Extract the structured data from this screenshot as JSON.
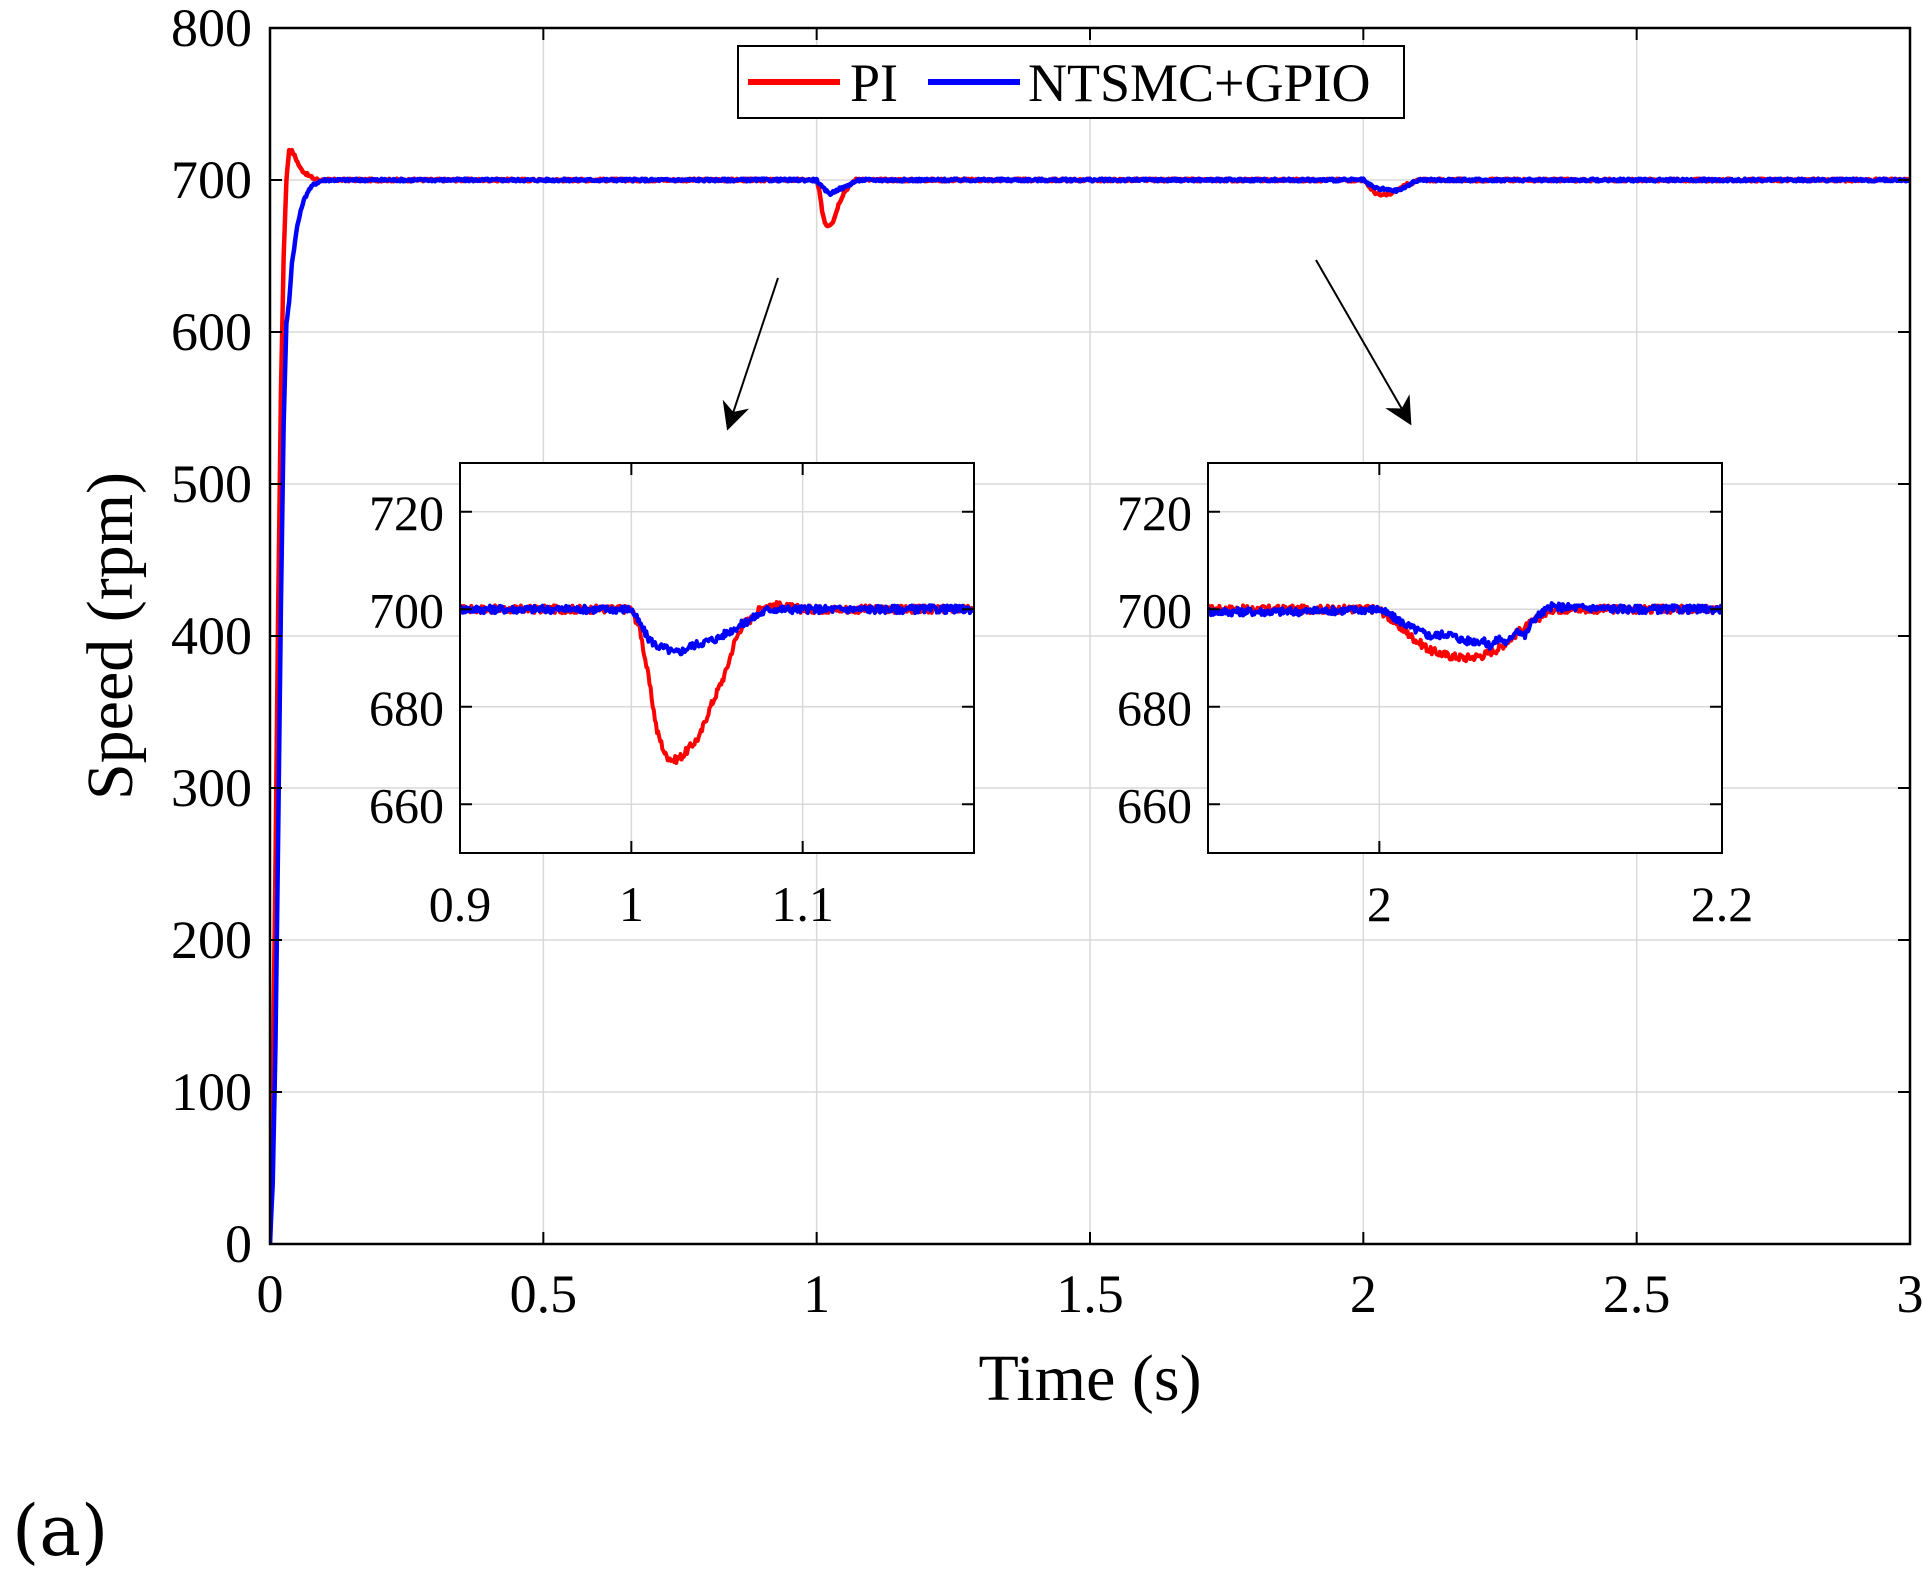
{
  "panel_label": "(a)",
  "colors": {
    "pi": "#ff0000",
    "ntsmc_gpio": "#0000ff",
    "grid": "#d9d9d9",
    "axis": "#000000"
  },
  "chart_data": {
    "type": "line",
    "title": "",
    "xlabel": "Time (s)",
    "ylabel": "Speed (rpm)",
    "xlim": [
      0,
      3
    ],
    "ylim": [
      0,
      800
    ],
    "xticks": [
      0,
      0.5,
      1,
      1.5,
      2,
      2.5,
      3
    ],
    "xtick_labels": [
      "0",
      "0.5",
      "1",
      "1.5",
      "2",
      "2.5",
      "3"
    ],
    "yticks": [
      0,
      100,
      200,
      300,
      400,
      500,
      600,
      700,
      800
    ],
    "ytick_labels": [
      "0",
      "100",
      "200",
      "300",
      "400",
      "500",
      "600",
      "700",
      "800"
    ],
    "grid": true,
    "legend": {
      "placement": "top-center",
      "entries": [
        "PI",
        "NTSMC+GPIO"
      ]
    },
    "series": [
      {
        "name": "PI",
        "color": "#ff0000",
        "x": [
          0,
          0.005,
          0.01,
          0.015,
          0.02,
          0.025,
          0.03,
          0.035,
          0.04,
          0.045,
          0.05,
          0.055,
          0.06,
          0.07,
          0.08,
          0.09,
          0.1,
          0.12,
          0.15,
          0.3,
          0.6,
          0.9,
          1.0,
          1.005,
          1.01,
          1.015,
          1.02,
          1.025,
          1.03,
          1.035,
          1.04,
          1.05,
          1.06,
          1.07,
          1.08,
          1.09,
          1.2,
          1.5,
          1.9,
          2.0,
          2.01,
          2.02,
          2.03,
          2.04,
          2.05,
          2.06,
          2.07,
          2.08,
          2.09,
          2.1,
          2.11,
          2.2,
          2.5,
          3.0
        ],
        "y": [
          0,
          100,
          250,
          420,
          560,
          650,
          700,
          720,
          719,
          716,
          712,
          708,
          706,
          703,
          701,
          700,
          700,
          700,
          700,
          700,
          700,
          700,
          700,
          692,
          680,
          672,
          670,
          671,
          673,
          678,
          684,
          692,
          696,
          700,
          701,
          700,
          700,
          700,
          700,
          700,
          696,
          692,
          690,
          690,
          691,
          693,
          695,
          697,
          698,
          700,
          700,
          700,
          700,
          700
        ]
      },
      {
        "name": "NTSMC+GPIO",
        "color": "#0000ff",
        "x": [
          0,
          0.005,
          0.01,
          0.015,
          0.02,
          0.025,
          0.03,
          0.035,
          0.04,
          0.05,
          0.06,
          0.07,
          0.08,
          0.09,
          0.1,
          0.11,
          0.12,
          0.14,
          0.3,
          0.6,
          0.9,
          1.0,
          1.01,
          1.02,
          1.025,
          1.03,
          1.04,
          1.05,
          1.06,
          1.07,
          1.08,
          1.1,
          1.5,
          1.9,
          2.0,
          2.01,
          2.02,
          2.03,
          2.04,
          2.05,
          2.06,
          2.07,
          2.08,
          2.09,
          2.1,
          2.11,
          2.2,
          2.5,
          3.0
        ],
        "y": [
          0,
          40,
          130,
          270,
          420,
          540,
          605,
          620,
          645,
          670,
          685,
          693,
          697,
          699,
          700,
          700,
          700,
          700,
          700,
          700,
          700,
          700,
          695,
          692,
          691,
          692,
          694,
          695,
          697,
          699,
          700,
          700,
          700,
          700,
          700,
          697,
          695,
          694,
          694,
          693,
          693,
          694,
          696,
          698,
          700,
          700,
          700,
          700,
          700
        ]
      }
    ],
    "insets": [
      {
        "name": "inset-1",
        "xlim": [
          0.9,
          1.2
        ],
        "ylim": [
          650,
          730
        ],
        "xticks": [
          0.9,
          1,
          1.1
        ],
        "xtick_labels": [
          "0.9",
          "1",
          "1.1"
        ],
        "yticks": [
          660,
          680,
          700,
          720
        ],
        "ytick_labels": [
          "660",
          "680",
          "700",
          "720"
        ],
        "series": [
          {
            "name": "PI",
            "color": "#ff0000",
            "x": [
              0.9,
              0.95,
              1.0,
              1.005,
              1.01,
              1.015,
              1.02,
              1.025,
              1.03,
              1.035,
              1.04,
              1.045,
              1.05,
              1.055,
              1.06,
              1.065,
              1.07,
              1.075,
              1.08,
              1.1,
              1.15,
              1.2
            ],
            "y": [
              700,
              700,
              700,
              696,
              686,
              675,
              670,
              669,
              670,
              672,
              674,
              679,
              683,
              687,
              693,
              697,
              698,
              700,
              701,
              700,
              700,
              700
            ]
          },
          {
            "name": "NTSMC+GPIO",
            "color": "#0000ff",
            "x": [
              0.9,
              0.95,
              0.99,
              1.0,
              1.005,
              1.01,
              1.015,
              1.02,
              1.025,
              1.03,
              1.035,
              1.04,
              1.045,
              1.05,
              1.055,
              1.06,
              1.065,
              1.07,
              1.075,
              1.08,
              1.1,
              1.15,
              1.2
            ],
            "y": [
              700,
              700,
              700,
              700,
              697,
              694,
              692.5,
              692,
              691,
              691.5,
              692.5,
              693,
              693.5,
              694,
              695,
              696,
              697,
              698,
              699,
              700,
              700,
              700,
              700
            ]
          }
        ]
      },
      {
        "name": "inset-2",
        "xlim": [
          1.9,
          2.2
        ],
        "ylim": [
          650,
          730
        ],
        "xticks": [
          2,
          2.2
        ],
        "xtick_labels": [
          "2",
          "2.2"
        ],
        "yticks": [
          660,
          680,
          700,
          720
        ],
        "ytick_labels": [
          "660",
          "680",
          "700",
          "720"
        ],
        "series": [
          {
            "name": "PI",
            "color": "#ff0000",
            "x": [
              1.9,
              1.95,
              2.0,
              2.01,
              2.02,
              2.03,
              2.04,
              2.05,
              2.06,
              2.07,
              2.08,
              2.09,
              2.1,
              2.15,
              2.2
            ],
            "y": [
              700,
              700,
              700,
              697,
              694,
              691.5,
              690.5,
              690,
              690.5,
              692,
              695,
              697.5,
              700,
              700,
              700
            ]
          },
          {
            "name": "NTSMC+GPIO",
            "color": "#0000ff",
            "x": [
              1.9,
              1.95,
              2.0,
              2.01,
              2.02,
              2.03,
              2.04,
              2.05,
              2.06,
              2.065,
              2.07,
              2.075,
              2.08,
              2.085,
              2.09,
              2.1,
              2.15,
              2.2
            ],
            "y": [
              699.5,
              699.5,
              700,
              698,
              696,
              694.5,
              695,
              693.5,
              693.5,
              692.5,
              694,
              693,
              696,
              694.5,
              698,
              700.5,
              700,
              700
            ]
          }
        ]
      }
    ]
  }
}
